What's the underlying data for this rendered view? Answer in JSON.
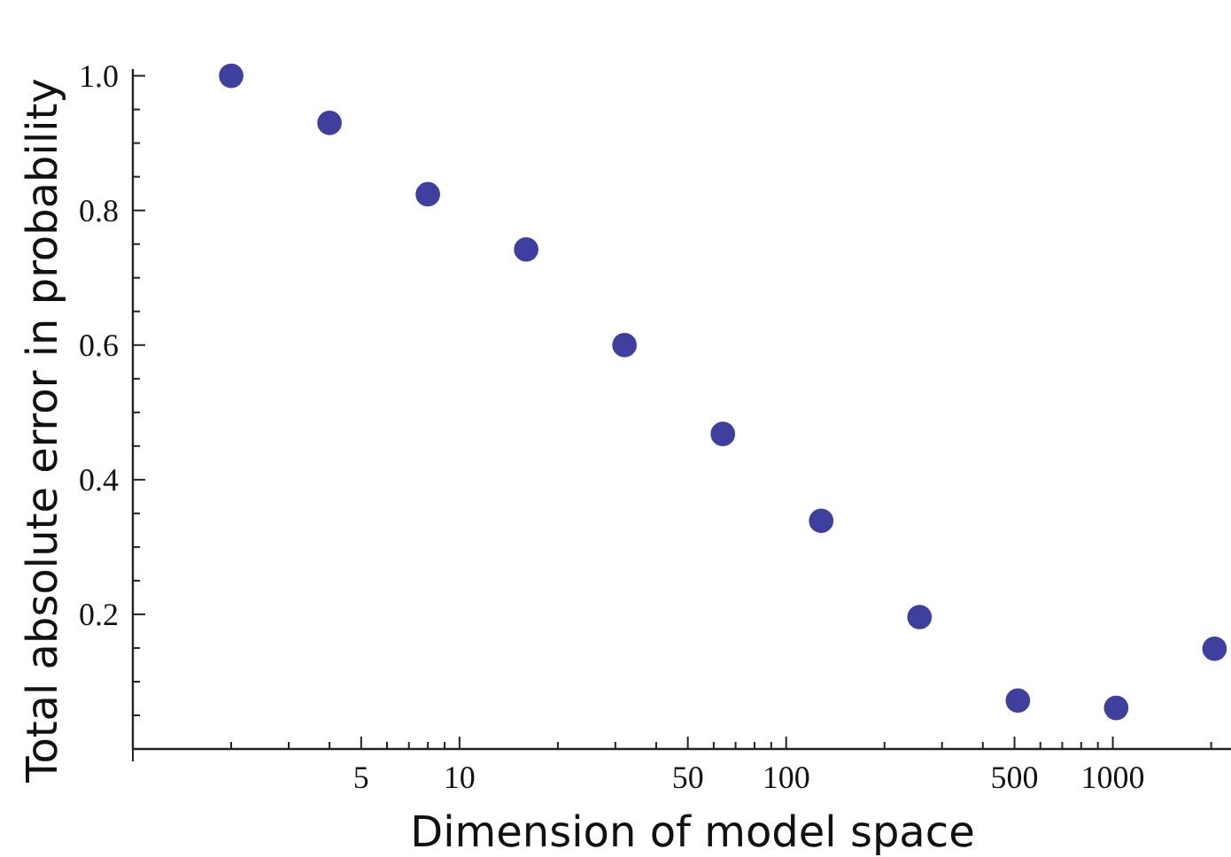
{
  "chart_data": {
    "type": "scatter",
    "xlabel": "Dimension of model space",
    "ylabel": "Total absolute error in probability",
    "log": "x",
    "marker": "circle",
    "grid": false,
    "x": [
      2,
      4,
      8,
      16,
      32,
      64,
      128,
      256,
      512,
      1024,
      2048
    ],
    "values": [
      1.0,
      0.93,
      0.824,
      0.742,
      0.6,
      0.468,
      0.339,
      0.196,
      0.072,
      0.061,
      0.149
    ],
    "color": "#3f3f9f",
    "xlim": [
      1,
      2300
    ],
    "xticks": [
      {
        "value": 1,
        "label": null
      },
      {
        "value": 2,
        "label": null
      },
      {
        "value": 3,
        "label": null
      },
      {
        "value": 4,
        "label": null
      },
      5,
      {
        "value": 6,
        "label": null
      },
      {
        "value": 7,
        "label": null
      },
      {
        "value": 8,
        "label": null
      },
      {
        "value": 9,
        "label": null
      },
      10,
      {
        "value": 20,
        "label": null
      },
      {
        "value": 30,
        "label": null
      },
      {
        "value": 40,
        "label": null
      },
      50,
      {
        "value": 60,
        "label": null
      },
      {
        "value": 70,
        "label": null
      },
      {
        "value": 80,
        "label": null
      },
      {
        "value": 90,
        "label": null
      },
      100,
      {
        "value": 200,
        "label": null
      },
      {
        "value": 300,
        "label": null
      },
      {
        "value": 400,
        "label": null
      },
      500,
      {
        "value": 600,
        "label": null
      },
      {
        "value": 700,
        "label": null
      },
      {
        "value": 800,
        "label": null
      },
      {
        "value": 900,
        "label": null
      },
      1000,
      {
        "value": 2000,
        "label": null
      }
    ],
    "ylim": [
      0,
      1.01
    ],
    "yticks": [
      {
        "value": 0.05,
        "label": null
      },
      {
        "value": 0.1,
        "label": null
      },
      {
        "value": 0.15,
        "label": null
      },
      {
        "value": 0.2,
        "label": "0.2"
      },
      {
        "value": 0.25,
        "label": null
      },
      {
        "value": 0.3,
        "label": null
      },
      {
        "value": 0.35,
        "label": null
      },
      {
        "value": 0.4,
        "label": "0.4"
      },
      {
        "value": 0.45,
        "label": null
      },
      {
        "value": 0.5,
        "label": null
      },
      {
        "value": 0.55,
        "label": null
      },
      {
        "value": 0.6,
        "label": "0.6"
      },
      {
        "value": 0.65,
        "label": null
      },
      {
        "value": 0.7,
        "label": null
      },
      {
        "value": 0.75,
        "label": null
      },
      {
        "value": 0.8,
        "label": "0.8"
      },
      {
        "value": 0.85,
        "label": null
      },
      {
        "value": 0.9,
        "label": null
      },
      {
        "value": 0.95,
        "label": null
      },
      {
        "value": 1.0,
        "label": "1.0"
      }
    ]
  }
}
